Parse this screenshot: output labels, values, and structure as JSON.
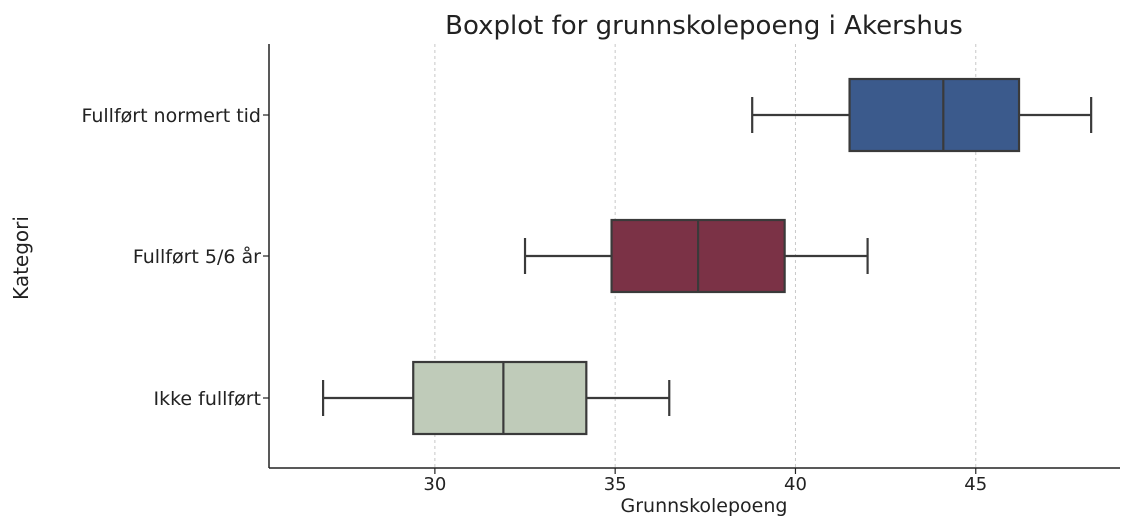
{
  "chart_data": {
    "type": "boxplot",
    "title": "Boxplot for grunnskolepoeng i Akershus",
    "xlabel": "Grunnskolepoeng",
    "ylabel": "Kategori",
    "xlim": [
      25.4,
      49
    ],
    "xticks": [
      30,
      35,
      40,
      45
    ],
    "grid": "vertical-dashed",
    "categories": [
      "Fullført normert tid",
      "Fullført 5/6 år",
      "Ikke fullført"
    ],
    "series": [
      {
        "category": "Fullført normert tid",
        "whisker_low": 38.8,
        "q1": 41.5,
        "median": 44.1,
        "q3": 46.2,
        "whisker_high": 48.2,
        "color": "#3b5a8c"
      },
      {
        "category": "Fullført 5/6 år",
        "whisker_low": 32.5,
        "q1": 34.9,
        "median": 37.3,
        "q3": 39.7,
        "whisker_high": 42.0,
        "color": "#7b3246"
      },
      {
        "category": "Ikke fullført",
        "whisker_low": 26.9,
        "q1": 29.4,
        "median": 31.9,
        "q3": 34.2,
        "whisker_high": 36.5,
        "color": "#bfcbb9"
      }
    ]
  }
}
